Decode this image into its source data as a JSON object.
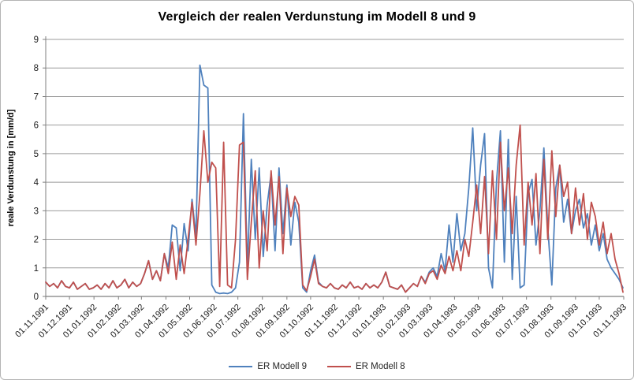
{
  "chart_data": {
    "type": "line",
    "title": "Vergleich der realen Verdunstung im Modell 8 und 9",
    "xlabel": "",
    "ylabel": "reale Verdunstung in [mm/d]",
    "ylim": [
      0,
      9
    ],
    "y_ticks": [
      0,
      1,
      2,
      3,
      4,
      5,
      6,
      7,
      8,
      9
    ],
    "grid": "horizontal",
    "legend_position": "bottom",
    "x_range_days": 731,
    "sample_interval_days": 5,
    "x_start": "01.11.1991",
    "x_end": "01.11.1993",
    "x_tick_labels": [
      "01.11.1991",
      "01.12.1991",
      "01.01.1992",
      "01.02.1992",
      "01.03.1992",
      "01.04.1992",
      "01.05.1992",
      "01.06.1992",
      "01.07.1992",
      "01.08.1992",
      "01.09.1992",
      "01.10.1992",
      "01.11.1992",
      "01.12.1992",
      "01.01.1993",
      "01.02.1993",
      "01.03.1993",
      "01.04.1993",
      "01.05.1993",
      "01.06.1993",
      "01.07.1993",
      "01.08.1993",
      "01.09.1993",
      "01.10.1993",
      "01.11.1993"
    ],
    "x_tick_days": [
      0,
      30,
      61,
      92,
      121,
      152,
      182,
      213,
      243,
      274,
      305,
      335,
      366,
      396,
      427,
      458,
      486,
      517,
      547,
      578,
      608,
      639,
      670,
      700,
      731
    ],
    "series": [
      {
        "name": "ER Modell 9",
        "color": "#4F81BD",
        "values": [
          0.5,
          0.35,
          0.45,
          0.3,
          0.55,
          0.35,
          0.3,
          0.5,
          0.25,
          0.35,
          0.45,
          0.25,
          0.3,
          0.4,
          0.25,
          0.45,
          0.3,
          0.55,
          0.3,
          0.4,
          0.6,
          0.3,
          0.5,
          0.35,
          0.45,
          0.8,
          1.25,
          0.6,
          0.9,
          0.55,
          1.5,
          1.0,
          2.5,
          2.4,
          0.9,
          2.55,
          1.6,
          3.4,
          2.1,
          8.1,
          7.4,
          7.3,
          0.4,
          0.15,
          0.1,
          0.12,
          0.1,
          0.15,
          0.3,
          1.2,
          6.4,
          1.0,
          4.8,
          2.0,
          4.5,
          1.4,
          3.2,
          4.3,
          1.6,
          4.5,
          2.2,
          3.9,
          1.8,
          3.3,
          2.6,
          0.3,
          0.15,
          0.9,
          1.45,
          0.5,
          0.35,
          0.3,
          0.45,
          0.3,
          0.25,
          0.4,
          0.3,
          0.5,
          0.3,
          0.35,
          0.25,
          0.45,
          0.3,
          0.4,
          0.3,
          0.5,
          0.85,
          0.35,
          0.3,
          0.25,
          0.4,
          0.15,
          0.3,
          0.45,
          0.35,
          0.7,
          0.5,
          0.85,
          1.0,
          0.7,
          1.5,
          0.9,
          2.5,
          1.2,
          2.9,
          1.6,
          2.2,
          3.8,
          5.9,
          3.0,
          4.6,
          5.7,
          1.0,
          0.3,
          4.0,
          5.8,
          1.2,
          5.5,
          0.6,
          3.5,
          0.3,
          0.4,
          3.6,
          4.1,
          1.8,
          3.0,
          5.2,
          2.4,
          0.4,
          3.8,
          4.6,
          2.6,
          3.4,
          2.2,
          3.0,
          3.4,
          2.4,
          2.9,
          1.8,
          2.5,
          1.6,
          2.2,
          1.3,
          1.0,
          0.8,
          0.6,
          0.3
        ]
      },
      {
        "name": "ER Modell 8",
        "color": "#C0504D",
        "values": [
          0.5,
          0.35,
          0.45,
          0.3,
          0.55,
          0.35,
          0.3,
          0.5,
          0.25,
          0.35,
          0.45,
          0.25,
          0.3,
          0.4,
          0.25,
          0.45,
          0.3,
          0.55,
          0.3,
          0.4,
          0.6,
          0.3,
          0.5,
          0.35,
          0.45,
          0.8,
          1.25,
          0.6,
          0.9,
          0.55,
          1.5,
          0.8,
          1.9,
          0.6,
          1.8,
          0.8,
          2.0,
          3.3,
          1.8,
          3.6,
          5.8,
          4.0,
          4.7,
          4.5,
          0.35,
          5.4,
          0.4,
          0.3,
          2.0,
          5.3,
          5.4,
          0.6,
          2.6,
          4.4,
          1.0,
          3.0,
          1.6,
          4.4,
          2.5,
          4.2,
          1.5,
          3.8,
          2.8,
          3.5,
          3.2,
          0.4,
          0.2,
          0.7,
          1.3,
          0.45,
          0.35,
          0.3,
          0.45,
          0.3,
          0.25,
          0.4,
          0.3,
          0.5,
          0.3,
          0.35,
          0.25,
          0.45,
          0.3,
          0.4,
          0.3,
          0.5,
          0.85,
          0.35,
          0.3,
          0.25,
          0.4,
          0.15,
          0.3,
          0.45,
          0.35,
          0.7,
          0.45,
          0.8,
          0.9,
          0.6,
          1.1,
          0.8,
          1.4,
          0.9,
          1.6,
          0.9,
          2.0,
          1.4,
          2.6,
          3.9,
          2.2,
          4.2,
          1.5,
          4.4,
          2.0,
          5.4,
          3.0,
          4.5,
          2.2,
          4.6,
          6.0,
          1.8,
          4.0,
          2.5,
          4.3,
          1.5,
          4.8,
          2.0,
          5.1,
          2.8,
          4.6,
          3.5,
          4.0,
          2.2,
          3.8,
          2.5,
          3.6,
          2.0,
          3.3,
          2.8,
          1.8,
          2.6,
          1.5,
          2.2,
          1.3,
          0.8,
          0.15
        ]
      }
    ]
  },
  "colors": {
    "grid": "#9b9b9b",
    "axis": "#7f7f7f",
    "text": "#1a1a1a",
    "frame_border": "#b4b4b4"
  }
}
